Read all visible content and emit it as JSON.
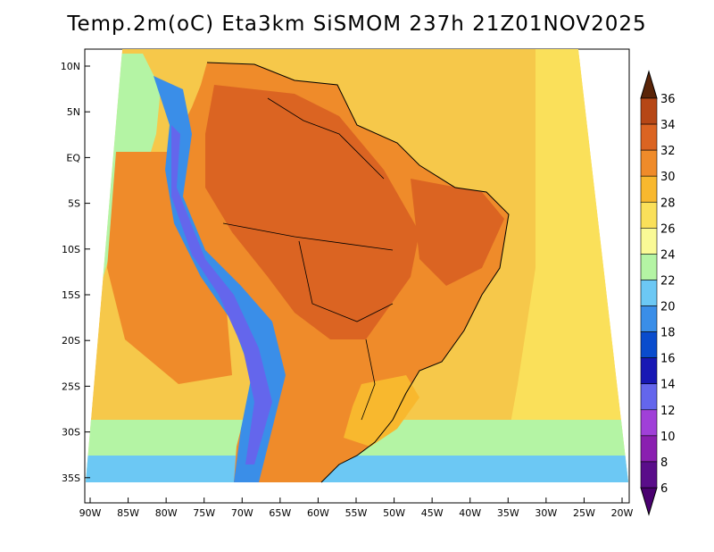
{
  "title": "Temp.2m(oC) Eta3km SiSMOM 237h 21Z01NOV2025",
  "map": {
    "variable": "2 m temperature",
    "units": "oC",
    "lon_range": [
      -90,
      -20
    ],
    "lat_range": [
      -38,
      12
    ],
    "x_ticks": [
      {
        "lon": -90,
        "label": "90W"
      },
      {
        "lon": -85,
        "label": "85W"
      },
      {
        "lon": -80,
        "label": "80W"
      },
      {
        "lon": -75,
        "label": "75W"
      },
      {
        "lon": -70,
        "label": "70W"
      },
      {
        "lon": -65,
        "label": "65W"
      },
      {
        "lon": -60,
        "label": "60W"
      },
      {
        "lon": -55,
        "label": "55W"
      },
      {
        "lon": -50,
        "label": "50W"
      },
      {
        "lon": -45,
        "label": "45W"
      },
      {
        "lon": -40,
        "label": "40W"
      },
      {
        "lon": -35,
        "label": "35W"
      },
      {
        "lon": -30,
        "label": "30W"
      },
      {
        "lon": -25,
        "label": "25W"
      },
      {
        "lon": -20,
        "label": "20W"
      }
    ],
    "y_ticks": [
      {
        "lat": 10,
        "label": "10N"
      },
      {
        "lat": 5,
        "label": "5N"
      },
      {
        "lat": 0,
        "label": "EQ"
      },
      {
        "lat": -5,
        "label": "5S"
      },
      {
        "lat": -10,
        "label": "10S"
      },
      {
        "lat": -15,
        "label": "15S"
      },
      {
        "lat": -20,
        "label": "20S"
      },
      {
        "lat": -25,
        "label": "25S"
      },
      {
        "lat": -30,
        "label": "30S"
      },
      {
        "lat": -35,
        "label": "35S"
      }
    ]
  },
  "colorbar": {
    "levels": [
      {
        "value": "6",
        "color": "#5a0d8a"
      },
      {
        "value": "8",
        "color": "#8a1fb0"
      },
      {
        "value": "10",
        "color": "#a040d8"
      },
      {
        "value": "12",
        "color": "#6466ec"
      },
      {
        "value": "14",
        "color": "#1818b4"
      },
      {
        "value": "16",
        "color": "#0a4ccd"
      },
      {
        "value": "18",
        "color": "#3a8ee8"
      },
      {
        "value": "20",
        "color": "#6cc8f4"
      },
      {
        "value": "22",
        "color": "#b4f4a4"
      },
      {
        "value": "24",
        "color": "#fafa96"
      },
      {
        "value": "26",
        "color": "#fae05a"
      },
      {
        "value": "28",
        "color": "#f8b82e"
      },
      {
        "value": "30",
        "color": "#ef8b2a"
      },
      {
        "value": "32",
        "color": "#db6422"
      },
      {
        "value": "34",
        "color": "#b64716"
      },
      {
        "value": "36",
        "color": "#7a320e"
      }
    ],
    "below_color": "#4a0070",
    "above_color": "#5a2408"
  },
  "colors": {
    "ocean_far": "#f6c84a",
    "ocean_mid": "#fae05a",
    "cool_south": "#b4f4a4",
    "land_hot": "#ef8b2a",
    "land_very_hot": "#db6422",
    "andes_cold": "#6466ec"
  }
}
